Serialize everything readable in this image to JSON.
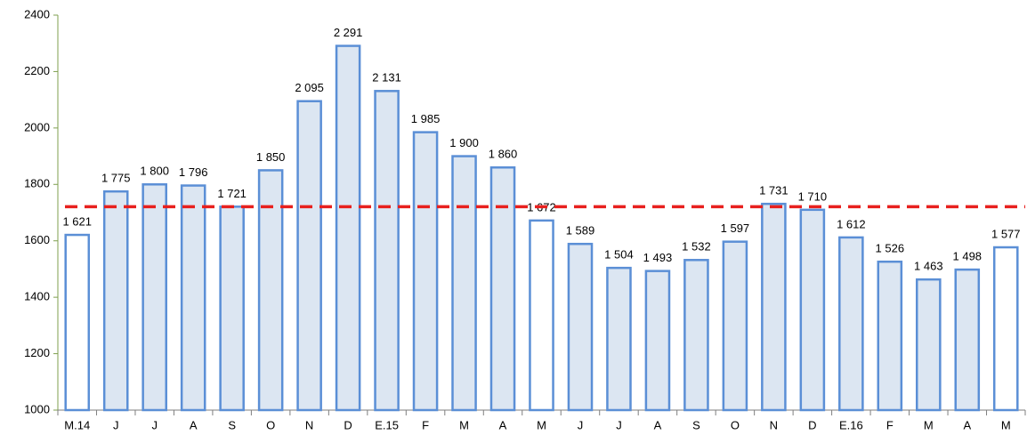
{
  "chart_data": {
    "type": "bar",
    "categories": [
      "M.14",
      "J",
      "J",
      "A",
      "S",
      "O",
      "N",
      "D",
      "E.15",
      "F",
      "M",
      "A",
      "M",
      "J",
      "J",
      "A",
      "S",
      "O",
      "N",
      "D",
      "E.16",
      "F",
      "M",
      "A",
      "M"
    ],
    "values": [
      1621,
      1775,
      1800,
      1796,
      1721,
      1850,
      2095,
      2291,
      2131,
      1985,
      1900,
      1860,
      1672,
      1589,
      1504,
      1493,
      1532,
      1597,
      1731,
      1710,
      1612,
      1526,
      1463,
      1498,
      1577
    ],
    "value_labels": [
      "1 621",
      "1 775",
      "1 800",
      "1 796",
      "1 721",
      "1 850",
      "2 095",
      "2 291",
      "2 131",
      "1 985",
      "1 900",
      "1 860",
      "1 672",
      "1 589",
      "1 504",
      "1 493",
      "1 532",
      "1 597",
      "1 731",
      "1 710",
      "1 612",
      "1 526",
      "1 463",
      "1 498",
      "1 577"
    ],
    "colors": [
      "#ffffff",
      "#dce6f2",
      "#dce6f2",
      "#dce6f2",
      "#dce6f2",
      "#dce6f2",
      "#dce6f2",
      "#dce6f2",
      "#dce6f2",
      "#dce6f2",
      "#dce6f2",
      "#dce6f2",
      "#ffffff",
      "#dce6f2",
      "#dce6f2",
      "#dce6f2",
      "#dce6f2",
      "#dce6f2",
      "#dce6f2",
      "#dce6f2",
      "#dce6f2",
      "#dce6f2",
      "#dce6f2",
      "#dce6f2",
      "#ffffff"
    ],
    "border_color": "#5b8fd6",
    "reference_line": {
      "value": 1721,
      "color": "#e8201e"
    },
    "ylim": [
      1000,
      2400
    ],
    "yticks": [
      1000,
      1200,
      1400,
      1600,
      1800,
      2000,
      2200,
      2400
    ]
  }
}
